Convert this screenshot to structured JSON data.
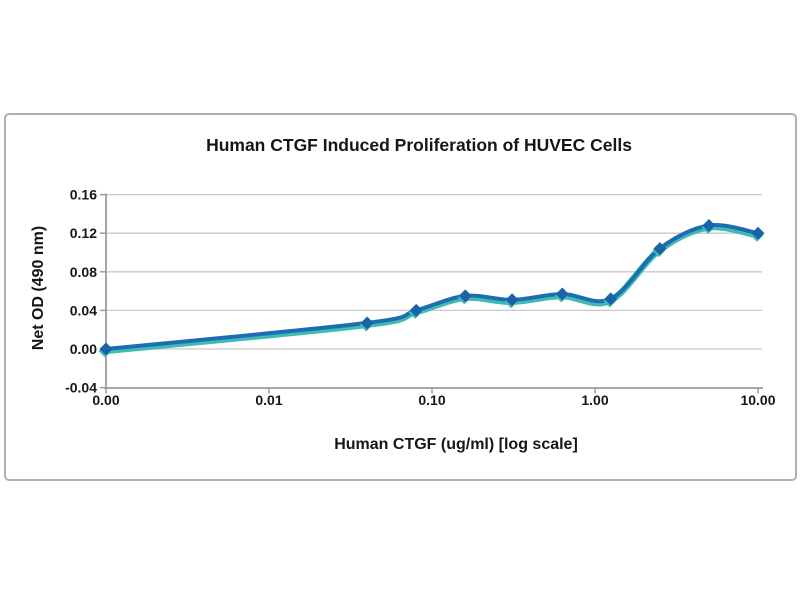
{
  "figure": {
    "background": "#ffffff",
    "frame_color": "#b0b0b0",
    "grid_color": "#c9c9c9",
    "axis_color": "#9b9b9b",
    "text_color": "#161616"
  },
  "chart_data": {
    "type": "line",
    "title": "Human CTGF Induced Proliferation of HUVEC Cells",
    "xlabel": "Human CTGF (ug/ml) [log scale]",
    "ylabel": "Net OD (490 nm)",
    "x_scale": "log",
    "x_min_plotted": 0.001,
    "x_zero_note": "x value 0 is plotted at the left end of the log axis",
    "ylim": [
      -0.04,
      0.16
    ],
    "grid": "horizontal",
    "legend_position": "none",
    "y_ticks": [
      {
        "label": "0.16",
        "value": 0.16
      },
      {
        "label": "0.12",
        "value": 0.12
      },
      {
        "label": "0.08",
        "value": 0.08
      },
      {
        "label": "0.04",
        "value": 0.04
      },
      {
        "label": "0.00",
        "value": 0.0
      },
      {
        "label": "-0.04",
        "value": -0.04
      }
    ],
    "x_ticks": [
      {
        "label": "0.00",
        "value": 0.001
      },
      {
        "label": "0.01",
        "value": 0.01
      },
      {
        "label": "0.10",
        "value": 0.1
      },
      {
        "label": "1.00",
        "value": 1
      },
      {
        "label": "10.00",
        "value": 10
      }
    ],
    "series": [
      {
        "marker": "diamond",
        "line_color": "#1d6db4",
        "line_shadow_color": "#3fbcb2",
        "marker_color": "#1b62a8",
        "smoothed": true,
        "x": [
          0,
          0.04,
          0.08,
          0.16,
          0.31,
          0.63,
          1.25,
          2.5,
          5,
          10
        ],
        "y": [
          0.0,
          0.027,
          0.04,
          0.055,
          0.051,
          0.057,
          0.052,
          0.104,
          0.128,
          0.12
        ]
      }
    ]
  }
}
